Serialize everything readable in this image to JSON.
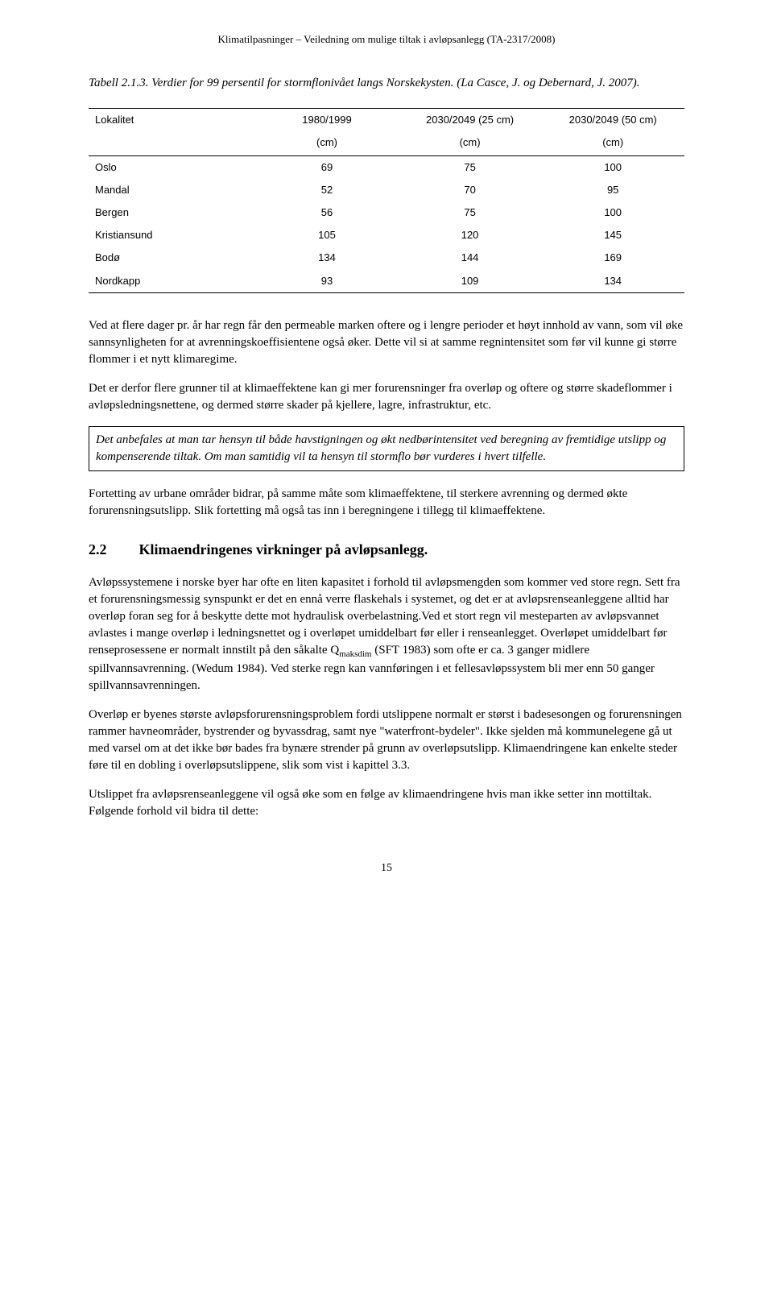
{
  "header": "Klimatilpasninger – Veiledning om mulige tiltak i avløpsanlegg (TA-2317/2008)",
  "caption": "Tabell 2.1.3. Verdier for 99 persentil for stormflonivået langs Norskekysten. (La Casce, J. og Debernard, J. 2007).",
  "table": {
    "headers_row1": [
      "Lokalitet",
      "1980/1999",
      "2030/2049 (25 cm)",
      "2030/2049 (50 cm)"
    ],
    "headers_row2": [
      "",
      "(cm)",
      "(cm)",
      "(cm)"
    ],
    "rows": [
      [
        "Oslo",
        "69",
        "75",
        "100"
      ],
      [
        "Mandal",
        "52",
        "70",
        "95"
      ],
      [
        "Bergen",
        "56",
        "75",
        "100"
      ],
      [
        "Kristiansund",
        "105",
        "120",
        "145"
      ],
      [
        "Bodø",
        "134",
        "144",
        "169"
      ],
      [
        "Nordkapp",
        "93",
        "109",
        "134"
      ]
    ],
    "col_widths": [
      "28%",
      "24%",
      "24%",
      "24%"
    ]
  },
  "paragraphs": {
    "p1": "Ved at flere dager pr. år har regn får den permeable marken oftere og i lengre perioder et høyt innhold av vann, som vil øke sannsynligheten for at avrenningskoeffisientene også øker. Dette vil si at samme regnintensitet som før vil kunne gi større flommer i et nytt klimaregime.",
    "p2": "Det er derfor flere grunner til at klimaeffektene kan gi mer forurensninger fra overløp og oftere og større skadeflommer i avløpsledningsnettene, og dermed større skader på kjellere, lagre, infrastruktur, etc.",
    "boxed": "Det anbefales at man tar hensyn til både havstigningen og økt nedbørintensitet ved beregning av fremtidige utslipp og kompenserende tiltak. Om man samtidig vil ta hensyn til stormflo bør vurderes i hvert tilfelle.",
    "p3": "Fortetting av urbane områder bidrar, på samme måte som klimaeffektene, til sterkere avrenning og dermed økte forurensningsutslipp. Slik fortetting må også tas inn i beregningene i tillegg til klimaeffektene."
  },
  "section": {
    "number": "2.2",
    "title": "Klimaendringenes virkninger på avløpsanlegg."
  },
  "body_paragraphs": {
    "b1_a": "Avløpssystemene i norske byer har ofte en liten kapasitet i forhold til avløpsmengden som kommer ved store regn. Sett fra et forurensningsmessig synspunkt er det en ennå verre flaskehals i systemet, og det er at avløpsrenseanleggene alltid har overløp foran seg for å beskytte dette mot hydraulisk overbelastning.Ved et stort regn vil mesteparten av avløpsvannet avlastes i mange overløp i ledningsnettet og i overløpet umiddelbart før eller i renseanlegget. Overløpet umiddelbart før renseprosessene er normalt innstilt på den såkalte Q",
    "b1_sub": "maksdim",
    "b1_b": " (SFT 1983) som ofte er ca. 3 ganger midlere spillvannsavrenning. (Wedum 1984). Ved sterke regn kan vannføringen i et fellesavløpssystem bli mer enn 50 ganger spillvannsavrenningen.",
    "b2": "Overløp er byenes største avløpsforurensningsproblem fordi utslippene normalt er størst i badesesongen og forurensningen rammer havneområder, bystrender og byvassdrag, samt nye \"waterfront-bydeler\". Ikke sjelden må kommunelegene gå ut med varsel om at det ikke bør bades fra bynære strender på grunn av overløpsutslipp. Klimaendringene kan enkelte steder føre til en dobling i overløpsutslippene, slik som vist i kapittel 3.3.",
    "b3": "Utslippet fra avløpsrenseanleggene vil også øke som en følge av klimaendringene hvis man ikke setter inn mottiltak. Følgende forhold vil bidra til dette:"
  },
  "page_number": "15"
}
